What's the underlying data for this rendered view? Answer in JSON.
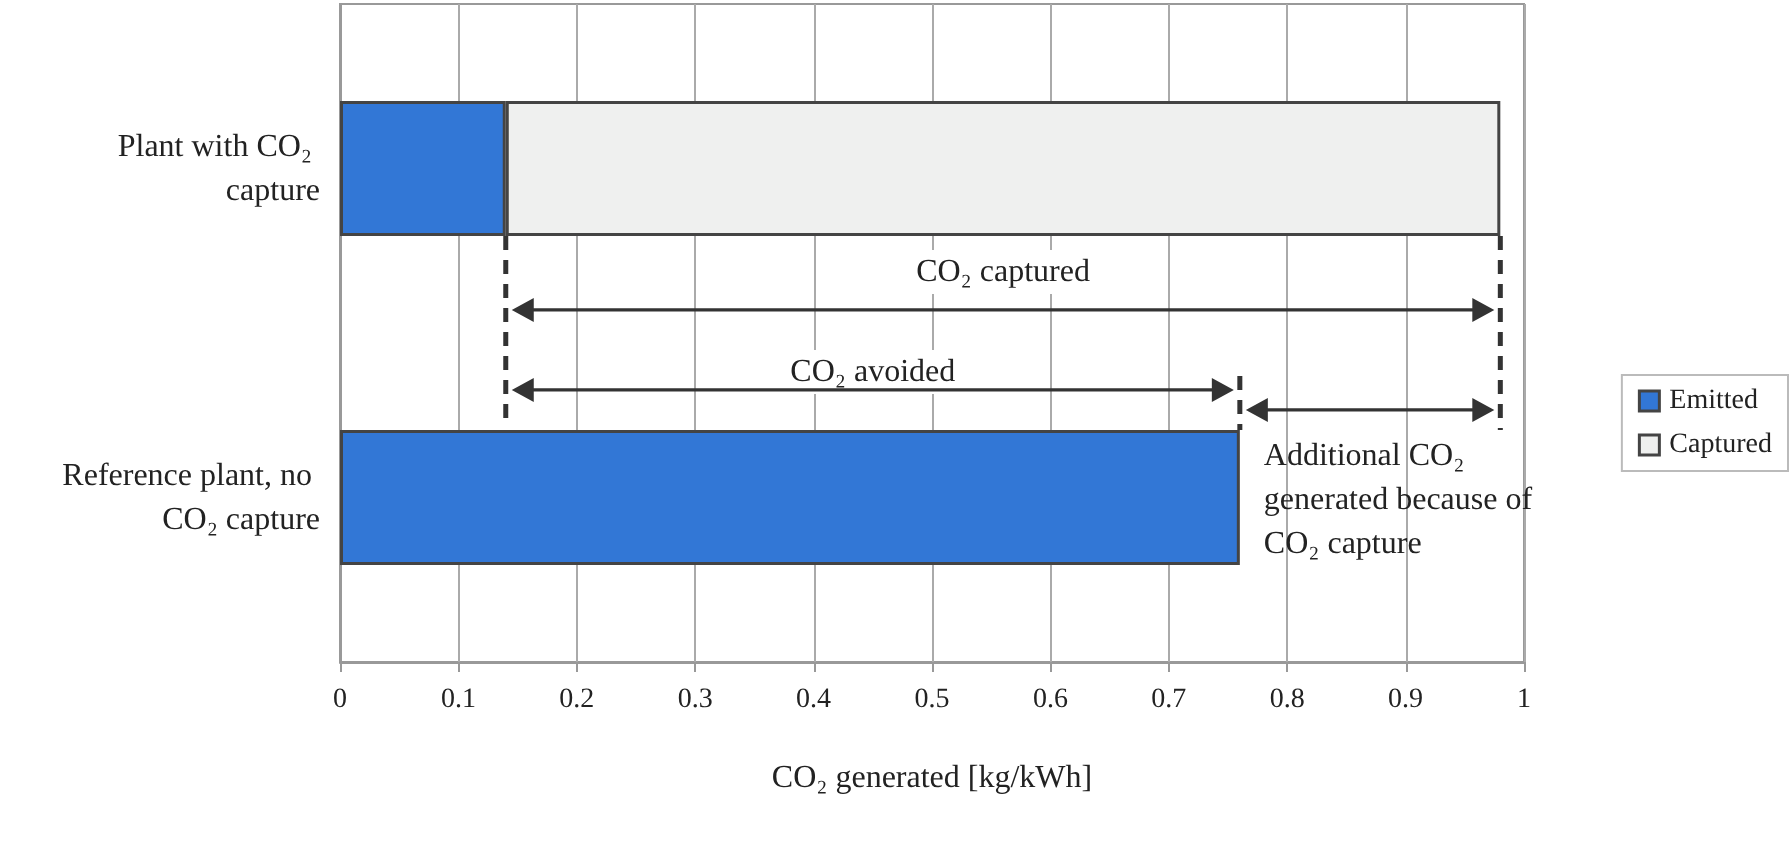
{
  "chart_data": {
    "type": "bar",
    "orientation": "horizontal",
    "stacked": true,
    "categories": [
      "Plant with CO₂ capture",
      "Reference plant, no CO₂ capture"
    ],
    "series": [
      {
        "name": "Emitted",
        "color": "#3277d6",
        "values": [
          0.14,
          0.76
        ]
      },
      {
        "name": "Captured",
        "color": "#eff0ef",
        "values": [
          0.84,
          null
        ]
      }
    ],
    "xlabel": "CO₂ generated [kg/kWh]",
    "xlim": [
      0,
      1
    ],
    "xticks": [
      0,
      0.1,
      0.2,
      0.3,
      0.4,
      0.5,
      0.6,
      0.7,
      0.8,
      0.9,
      1
    ],
    "grid": "x",
    "legend": "right",
    "ref_lines": [
      {
        "axis": "x",
        "value": 0.14,
        "color": "#333333",
        "line_style": "dashed"
      },
      {
        "axis": "x",
        "value": 0.98,
        "color": "#333333",
        "line_style": "dashed"
      },
      {
        "axis": "x",
        "value": 0.76,
        "color": "#333333",
        "line_style": "dashed"
      }
    ],
    "annotations": [
      "CO₂ captured",
      "CO₂ avoided",
      {
        "text": "Additional CO₂ generated because of CO₂ capture",
        "x": 0.76
      }
    ]
  }
}
